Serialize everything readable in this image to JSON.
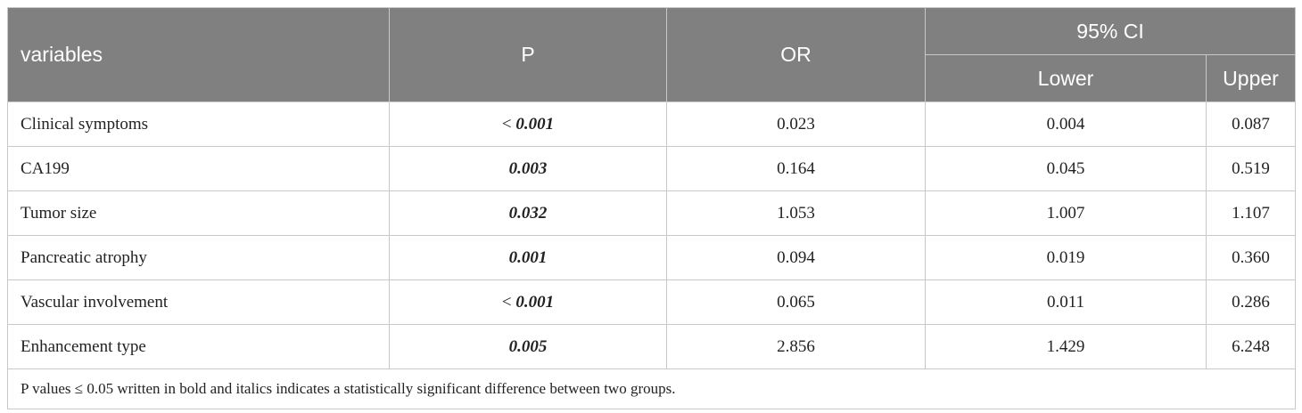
{
  "header": {
    "variables": "variables",
    "p": "P",
    "or": "OR",
    "ci": "95% CI",
    "lower": "Lower",
    "upper": "Upper"
  },
  "rows": [
    {
      "variable": "Clinical symptoms",
      "p_prefix": "< ",
      "p": "0.001",
      "or": "0.023",
      "lower": "0.004",
      "upper": "0.087"
    },
    {
      "variable": "CA199",
      "p_prefix": "",
      "p": "0.003",
      "or": "0.164",
      "lower": "0.045",
      "upper": "0.519"
    },
    {
      "variable": "Tumor size",
      "p_prefix": "",
      "p": "0.032",
      "or": "1.053",
      "lower": "1.007",
      "upper": "1.107"
    },
    {
      "variable": "Pancreatic atrophy",
      "p_prefix": "",
      "p": "0.001",
      "or": "0.094",
      "lower": "0.019",
      "upper": "0.360"
    },
    {
      "variable": "Vascular involvement",
      "p_prefix": "< ",
      "p": "0.001",
      "or": "0.065",
      "lower": "0.011",
      "upper": "0.286"
    },
    {
      "variable": "Enhancement type",
      "p_prefix": "",
      "p": "0.005",
      "or": "2.856",
      "lower": "1.429",
      "upper": "6.248"
    }
  ],
  "footnote": "P values ≤ 0.05 written in bold and italics indicates a statistically significant difference between two groups.",
  "colors": {
    "header_bg": "#808080",
    "header_text": "#ffffff",
    "border": "#c8c8c8"
  }
}
